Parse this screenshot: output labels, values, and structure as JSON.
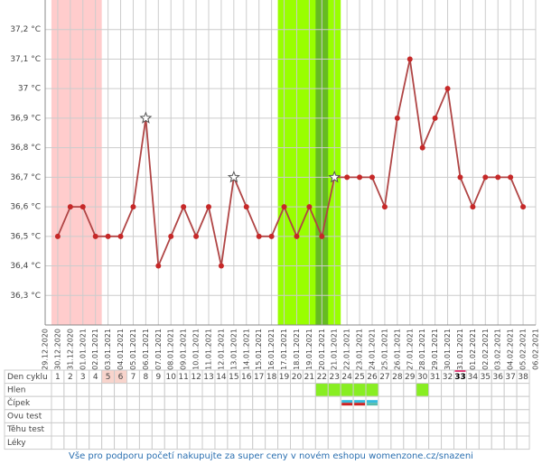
{
  "chart_data": {
    "type": "line",
    "x": [
      "29.12.2020",
      "30.12.2020",
      "31.12.2020",
      "01.01.2021",
      "02.01.2021",
      "03.01.2021",
      "04.01.2021",
      "05.01.2021",
      "06.01.2021",
      "07.01.2021",
      "08.01.2021",
      "09.01.2021",
      "10.01.2021",
      "11.01.2021",
      "12.01.2021",
      "13.01.2021",
      "14.01.2021",
      "15.01.2021",
      "16.01.2021",
      "17.01.2021",
      "18.01.2021",
      "19.01.2021",
      "20.01.2021",
      "21.01.2021",
      "22.01.2021",
      "23.01.2021",
      "24.01.2021",
      "25.01.2021",
      "26.01.2021",
      "27.01.2021",
      "28.01.2021",
      "29.01.2021",
      "30.01.2021",
      "31.01.2021",
      "01.02.2021",
      "02.02.2021",
      "03.02.2021",
      "04.02.2021",
      "05.02.2021",
      "06.02.2021"
    ],
    "values": [
      null,
      36.5,
      36.6,
      36.6,
      36.5,
      36.5,
      36.5,
      36.6,
      36.9,
      36.4,
      36.5,
      36.6,
      36.5,
      36.6,
      36.4,
      36.7,
      36.6,
      36.5,
      36.5,
      36.6,
      36.5,
      36.6,
      36.5,
      36.7,
      36.7,
      36.7,
      36.7,
      36.6,
      36.9,
      37.1,
      36.8,
      36.9,
      37.0,
      36.7,
      36.6,
      36.7,
      36.7,
      36.7,
      36.6,
      null
    ],
    "color": "#c62828",
    "line_color": "#b04545",
    "ylim": [
      36.2,
      37.3
    ],
    "yticks": [
      {
        "value": 36.3,
        "label": "36,3 °C"
      },
      {
        "value": 36.4,
        "label": "36,4 °C"
      },
      {
        "value": 36.5,
        "label": "36,5 °C"
      },
      {
        "value": 36.6,
        "label": "36,6 °C"
      },
      {
        "value": 36.7,
        "label": "36,7 °C"
      },
      {
        "value": 36.8,
        "label": "36,8 °C"
      },
      {
        "value": 36.9,
        "label": "36,9 °C"
      },
      {
        "value": 37,
        "label": "37 °C"
      },
      {
        "value": 37.1,
        "label": "37,1 °C"
      },
      {
        "value": 37.2,
        "label": "37,2 °C"
      }
    ],
    "grid": true,
    "star_indices": [
      8,
      15,
      23
    ],
    "bands": [
      {
        "from": 1,
        "to": 4,
        "color": "#ffcccc"
      },
      {
        "from": 19,
        "to": 23,
        "color": "#99ff00"
      },
      {
        "from": 22,
        "to": 22,
        "color": "#66bb22"
      }
    ]
  },
  "table": {
    "row_labels": [
      "Den cyklu",
      "Hlen",
      "Čípek",
      "Ovu test",
      "Těhu test",
      "Léky"
    ],
    "cycle_days": [
      1,
      2,
      3,
      4,
      5,
      6,
      7,
      8,
      9,
      10,
      11,
      12,
      13,
      14,
      15,
      16,
      17,
      18,
      19,
      20,
      21,
      22,
      23,
      24,
      25,
      26,
      27,
      28,
      29,
      30,
      31,
      32,
      33,
      34,
      35,
      36,
      37,
      38
    ],
    "highlight_days": [
      5,
      6
    ],
    "highlight_color": "#f8d4cc",
    "current_day": 33,
    "hlen_days": [
      22,
      23,
      24,
      25,
      26,
      30
    ],
    "hlen_color": "#88ee22",
    "cipek": [
      {
        "day": 24,
        "colors": [
          "#33bbdd",
          "#cc2222"
        ]
      },
      {
        "day": 25,
        "colors": [
          "#33bbdd",
          "#cc2222"
        ]
      },
      {
        "day": 26,
        "colors": [
          "#33bbdd",
          "#55bbaa"
        ]
      }
    ]
  },
  "footer": "Vše pro podporu početí nakupujte za super ceny v novém eshopu womenzone.cz/snazeni"
}
